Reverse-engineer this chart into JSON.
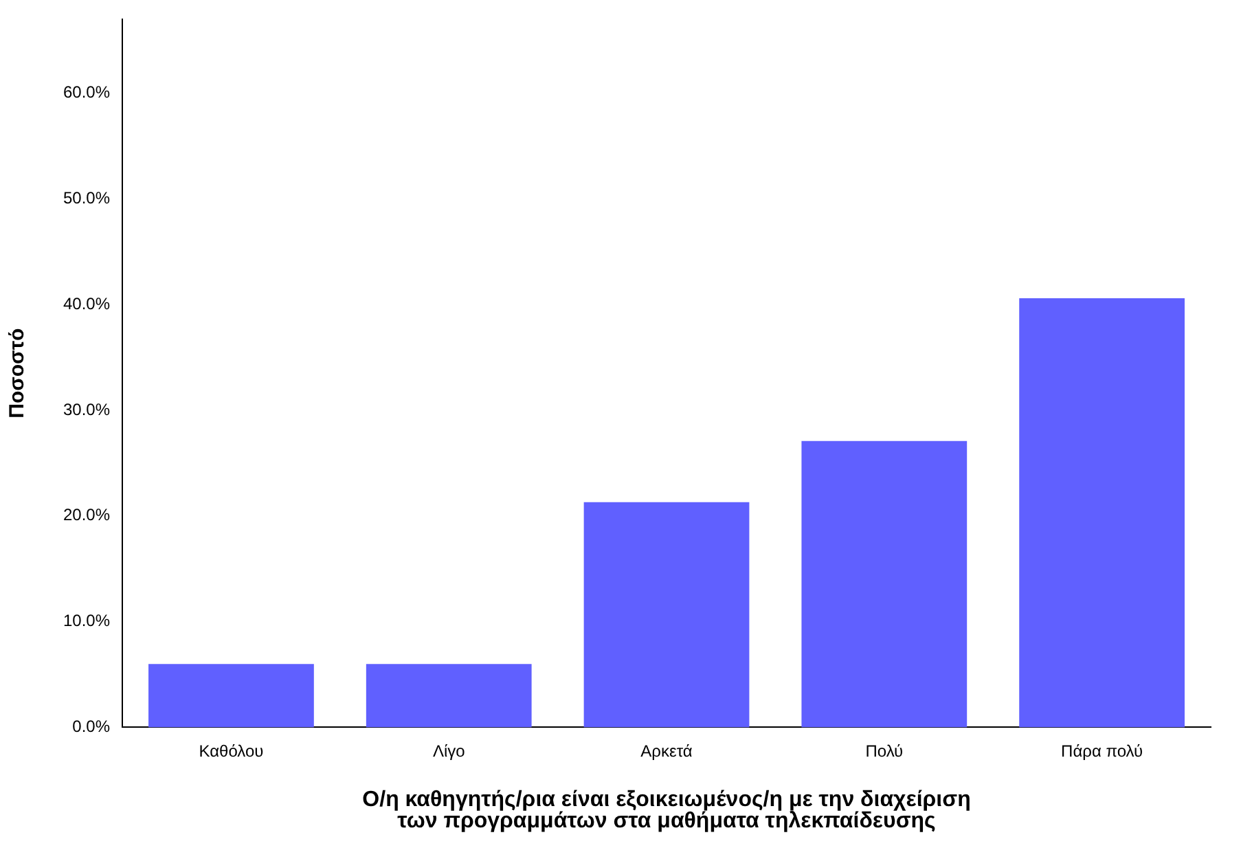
{
  "chart_data": {
    "type": "bar",
    "xlabel": "Ο/η καθηγητής/ρια είναι εξοικειωμένος/η με την διαχείριση των προγραμμάτων στα μαθήματα τηλεκπαίδευσης",
    "ylabel": "Ποσοστό",
    "categories": [
      "Καθόλου",
      "Λίγο",
      "Αρκετά",
      "Πολύ",
      "Πάρα πολύ"
    ],
    "values": [
      6.0,
      6.0,
      21.3,
      27.1,
      40.6
    ],
    "color": "#6060ff",
    "ylim": [
      0,
      67
    ],
    "yticks": [
      {
        "value": 0,
        "label": "0.0%"
      },
      {
        "value": 10,
        "label": "10.0%"
      },
      {
        "value": 20,
        "label": "20.0%"
      },
      {
        "value": 30,
        "label": "30.0%"
      },
      {
        "value": 40,
        "label": "40.0%"
      },
      {
        "value": 50,
        "label": "50.0%"
      },
      {
        "value": 60,
        "label": "60.0%"
      }
    ],
    "grid": false,
    "legend": false
  }
}
